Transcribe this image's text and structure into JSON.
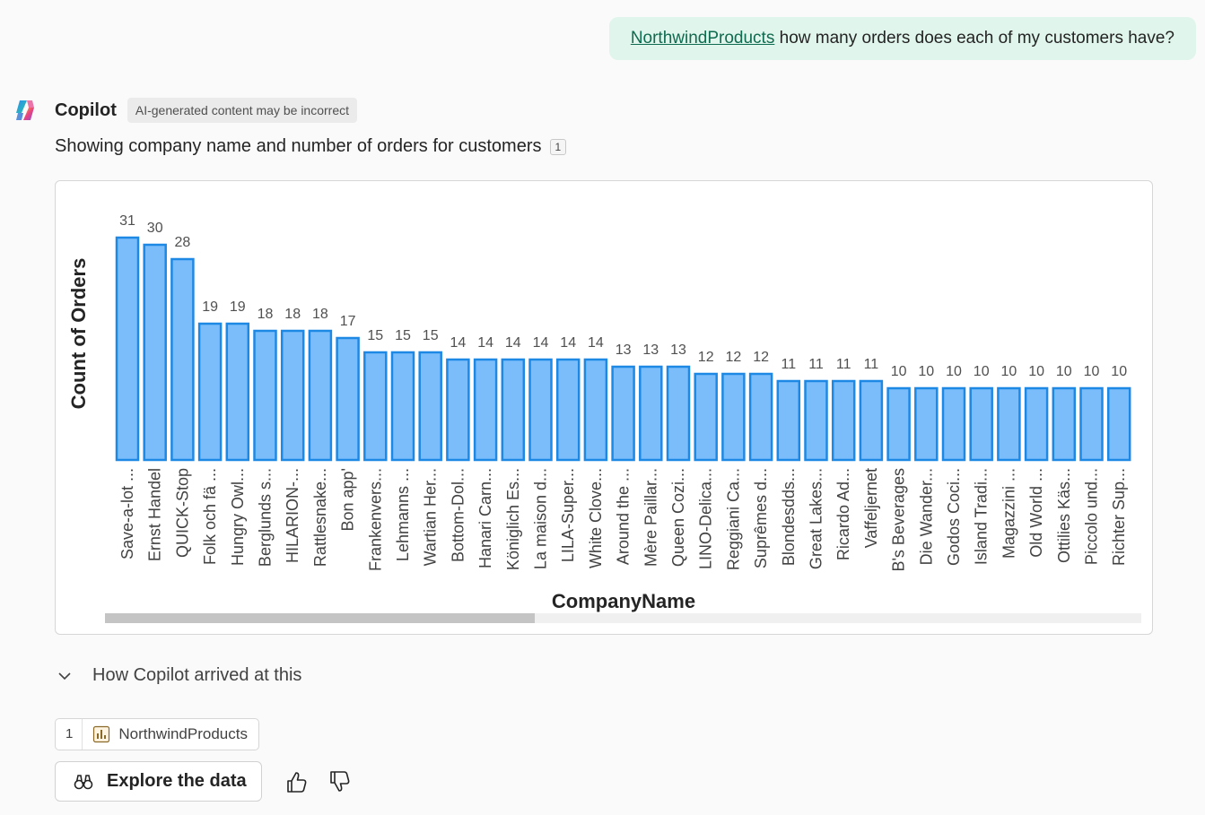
{
  "user_message": {
    "mention": "NorthwindProducts",
    "text": " how many orders does each of my customers have?"
  },
  "copilot": {
    "name": "Copilot",
    "badge": "AI-generated content may be incorrect",
    "summary": "Showing company name and number of orders for customers",
    "citation_number": "1"
  },
  "chart_data": {
    "type": "bar",
    "title": "",
    "xlabel": "CompanyName",
    "ylabel": "Count of Orders",
    "ylim": [
      0,
      31
    ],
    "categories": [
      "Save-a-lot ...",
      "Ernst Handel",
      "QUICK-Stop",
      "Folk och fä ...",
      "Hungry Owl...",
      "Berglunds s...",
      "HILARION-...",
      "Rattlesnake...",
      "Bon app'",
      "Frankenvers...",
      "Lehmanns ...",
      "Wartian Her...",
      "Bottom-Dol...",
      "Hanari Carn...",
      "Königlich Es...",
      "La maison d...",
      "LILA-Super...",
      "White Clove...",
      "Around the ...",
      "Mère Paillar...",
      "Queen Cozi...",
      "LINO-Delica...",
      "Reggiani Ca...",
      "Suprêmes d...",
      "Blondesdds...",
      "Great Lakes...",
      "Ricardo Ad...",
      "Vaffeljernet",
      "B's Beverages",
      "Die Wander...",
      "Godos Coci...",
      "Island Tradi...",
      "Magazzini ...",
      "Old World ...",
      "Ottilies Käs...",
      "Piccolo und...",
      "Richter Sup..."
    ],
    "values": [
      31,
      30,
      28,
      19,
      19,
      18,
      18,
      18,
      17,
      15,
      15,
      15,
      14,
      14,
      14,
      14,
      14,
      14,
      13,
      13,
      13,
      12,
      12,
      12,
      11,
      11,
      11,
      11,
      10,
      10,
      10,
      10,
      10,
      10,
      10,
      10,
      10
    ],
    "bar_fill": "#7bbdfb",
    "bar_stroke": "#1e88e5",
    "grid": false,
    "legend": "none"
  },
  "details": {
    "arrived_label": "How Copilot arrived at this"
  },
  "reference": {
    "number": "1",
    "label": "NorthwindProducts"
  },
  "actions": {
    "explore_label": "Explore the data"
  }
}
